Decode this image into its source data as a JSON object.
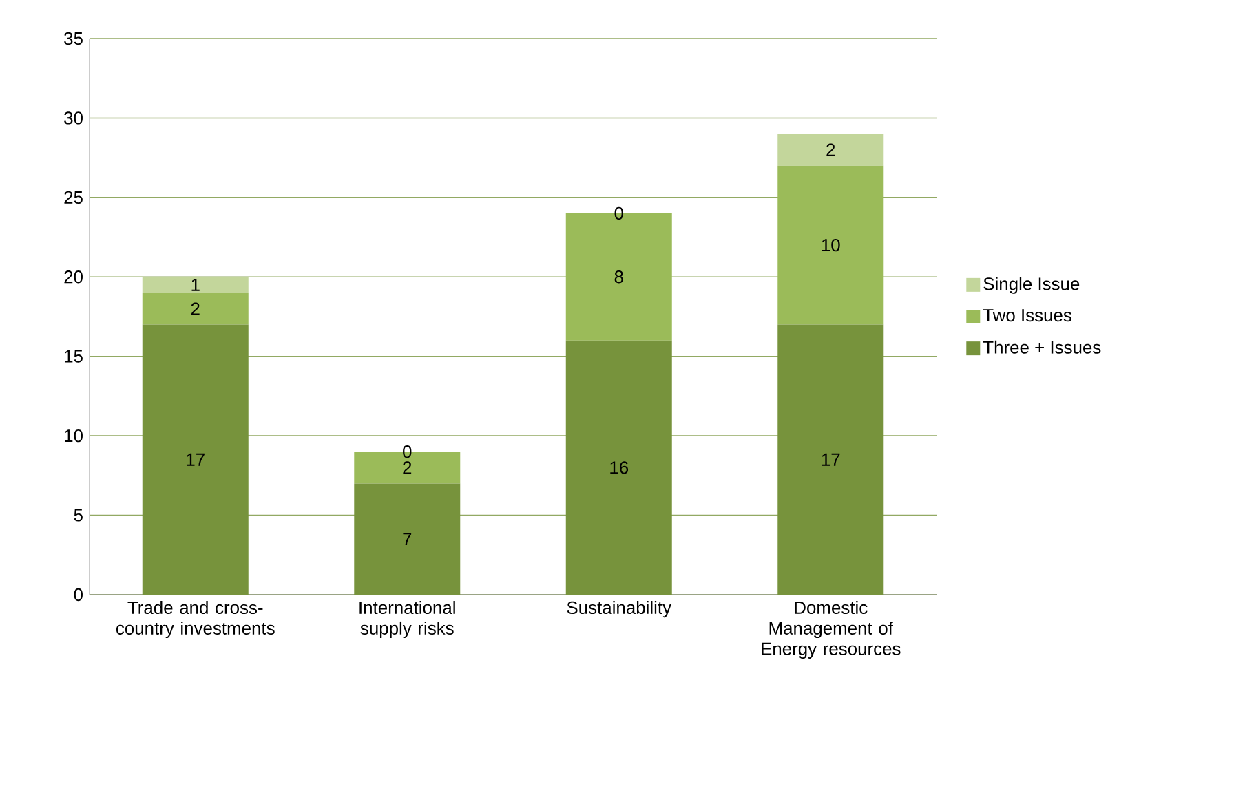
{
  "chart_data": {
    "type": "bar",
    "stacked": true,
    "categories": [
      "Trade and cross-country investments",
      "International supply risks",
      "Sustainability",
      "Domestic Management of Energy resources"
    ],
    "series": [
      {
        "name": "Three + Issues",
        "color": "#77933c",
        "values": [
          17,
          7,
          16,
          17
        ]
      },
      {
        "name": "Two Issues",
        "color": "#9bbb59",
        "values": [
          2,
          2,
          8,
          10
        ]
      },
      {
        "name": "Single Issue",
        "color": "#c3d69b",
        "values": [
          1,
          0,
          0,
          2
        ]
      }
    ],
    "ylim": [
      0,
      35
    ],
    "yticks": [
      0,
      5,
      10,
      15,
      20,
      25,
      30,
      35
    ],
    "grid": "y",
    "legend": "right",
    "data_labels": true
  }
}
